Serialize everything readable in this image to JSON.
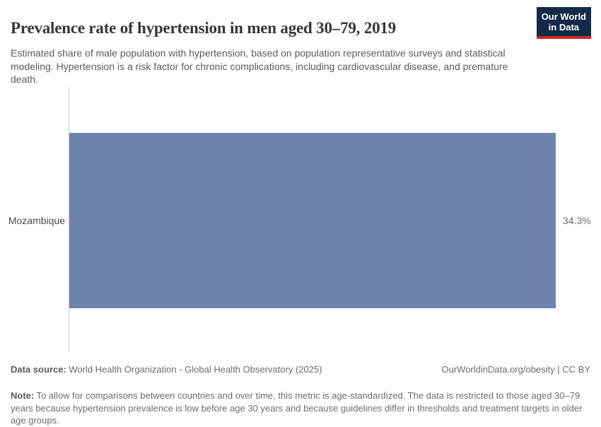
{
  "header": {
    "title": "Prevalence rate of hypertension in men aged 30–79, 2019",
    "subtitle": "Estimated share of male population with hypertension, based on population representative surveys and statistical modeling. Hypertension is a risk factor for chronic complications, including cardiovascular disease, and premature death.",
    "logo": {
      "line1": "Our World",
      "line2": "in Data",
      "bg_color": "#132a47",
      "accent_color": "#ce2820"
    }
  },
  "chart_data": {
    "type": "bar",
    "orientation": "horizontal",
    "title": "Prevalence rate of hypertension in men aged 30–79, 2019",
    "categories": [
      "Mozambique"
    ],
    "values": [
      34.3
    ],
    "value_labels": [
      "34.3%"
    ],
    "xlabel": "",
    "ylabel": "",
    "xlim": [
      0,
      34.3
    ],
    "grid": false,
    "legend": false,
    "bar_color": "#6e84ad",
    "axis_line_color": "#cfcfcf"
  },
  "footer": {
    "data_source_label": "Data source:",
    "data_source_value": " World Health Organization - Global Health Observatory (2025)",
    "attribution": "OurWorldinData.org/obesity | CC BY",
    "note_label": "Note:",
    "note_value": " To allow for comparisons between countries and over time, this metric is age-standardized. The data is restricted to those aged 30–79 years because hypertension prevalence is low before age 30 years and because guidelines differ in thresholds and treatment targets in older age groups."
  }
}
